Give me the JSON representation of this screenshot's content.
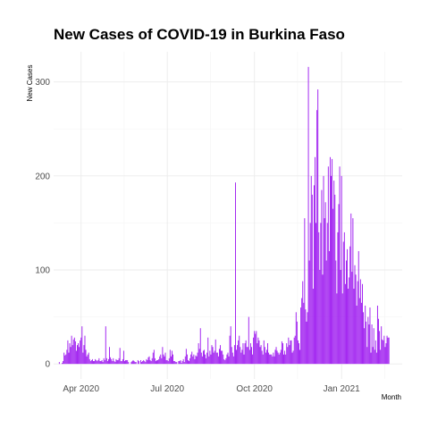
{
  "chart_data": {
    "type": "bar",
    "title": "New Cases of COVID-19 in Burkina Faso",
    "xlabel": "Month",
    "ylabel": "New Cases",
    "x_start": "2020-03-09",
    "x_end": "2021-02-26",
    "xlim": [
      "2020-03-03",
      "2021-03-06"
    ],
    "ylim": [
      -16,
      332
    ],
    "x_ticks": [
      {
        "date": "2020-04-01",
        "label": "Apr 2020"
      },
      {
        "date": "2020-07-01",
        "label": "Jul 2020"
      },
      {
        "date": "2020-10-01",
        "label": "Oct 2020"
      },
      {
        "date": "2021-01-01",
        "label": "Jan 2021"
      }
    ],
    "y_ticks": [
      0,
      100,
      200,
      300
    ],
    "bar_color": "#A020F0",
    "grid": true,
    "values": [
      2,
      0,
      0,
      1,
      3,
      12,
      9,
      10,
      15,
      25,
      12,
      22,
      18,
      30,
      20,
      26,
      28,
      24,
      14,
      20,
      22,
      18,
      25,
      28,
      40,
      12,
      20,
      30,
      15,
      8,
      10,
      12,
      5,
      3,
      4,
      5,
      3,
      3,
      5,
      4,
      3,
      4,
      6,
      3,
      3,
      4,
      2,
      6,
      4,
      40,
      6,
      3,
      5,
      18,
      7,
      5,
      3,
      6,
      3,
      2,
      5,
      4,
      4,
      6,
      17,
      3,
      3,
      5,
      14,
      3,
      4,
      4,
      4,
      2,
      0,
      0,
      2,
      3,
      4,
      3,
      2,
      2,
      0,
      4,
      3,
      0,
      4,
      2,
      3,
      4,
      3,
      2,
      5,
      4,
      7,
      8,
      4,
      3,
      6,
      12,
      15,
      6,
      3,
      4,
      4,
      5,
      8,
      10,
      6,
      18,
      10,
      8,
      12,
      4,
      4,
      3,
      6,
      15,
      8,
      14,
      10,
      3,
      3,
      2,
      2,
      0,
      3,
      3,
      4,
      1,
      3,
      5,
      2,
      8,
      16,
      10,
      4,
      3,
      6,
      10,
      13,
      8,
      10,
      5,
      9,
      8,
      12,
      22,
      16,
      38,
      12,
      8,
      14,
      15,
      10,
      6,
      12,
      28,
      8,
      14,
      10,
      20,
      18,
      12,
      14,
      26,
      12,
      12,
      8,
      16,
      20,
      14,
      14,
      10,
      5,
      4,
      6,
      10,
      12,
      8,
      30,
      40,
      18,
      12,
      8,
      20,
      193,
      15,
      20,
      25,
      30,
      18,
      12,
      15,
      22,
      10,
      22,
      25,
      18,
      18,
      50,
      15,
      22,
      18,
      10,
      28,
      35,
      32,
      35,
      22,
      28,
      25,
      18,
      20,
      14,
      10,
      25,
      18,
      12,
      15,
      22,
      12,
      10,
      10,
      10,
      8,
      12,
      8,
      15,
      18,
      14,
      12,
      10,
      12,
      15,
      24,
      22,
      10,
      14,
      10,
      22,
      18,
      28,
      20,
      25,
      25,
      12,
      14,
      28,
      30,
      55,
      45,
      25,
      22,
      15,
      60,
      70,
      88,
      65,
      155,
      58,
      45,
      55,
      316,
      110,
      150,
      200,
      180,
      80,
      190,
      220,
      150,
      270,
      292,
      140,
      100,
      150,
      185,
      95,
      200,
      155,
      172,
      110,
      150,
      210,
      120,
      220,
      200,
      218,
      165,
      195,
      180,
      110,
      75,
      140,
      170,
      210,
      100,
      200,
      75,
      130,
      140,
      85,
      110,
      122,
      80,
      92,
      125,
      160,
      98,
      155,
      80,
      105,
      95,
      62,
      88,
      120,
      70,
      90,
      65,
      85,
      55,
      38,
      62,
      45,
      18,
      50,
      42,
      60,
      12,
      42,
      18,
      38,
      15,
      25,
      12,
      62,
      48,
      35,
      15,
      40,
      26,
      25,
      30,
      18,
      22,
      30,
      28,
      28
    ]
  }
}
